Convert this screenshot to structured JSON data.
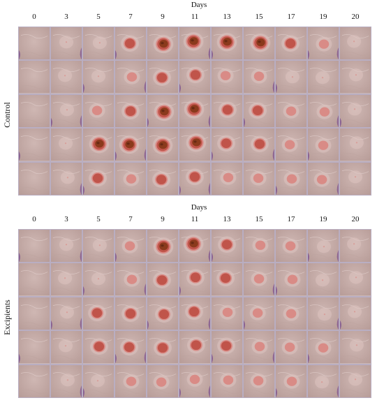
{
  "panels": [
    {
      "id": "control",
      "group_label": "Control",
      "axis_title": "Days",
      "days": [
        "0",
        "3",
        "5",
        "7",
        "9",
        "11",
        "13",
        "15",
        "17",
        "19",
        "20"
      ],
      "rows": 5,
      "wound_levels": [
        [
          0,
          1,
          1,
          3,
          4,
          4,
          4,
          4,
          3,
          2,
          1
        ],
        [
          0,
          1,
          1,
          2,
          3,
          3,
          2,
          2,
          1,
          1,
          1
        ],
        [
          0,
          1,
          2,
          3,
          4,
          4,
          3,
          3,
          2,
          2,
          1
        ],
        [
          0,
          1,
          4,
          4,
          4,
          4,
          3,
          3,
          2,
          2,
          1
        ],
        [
          0,
          1,
          3,
          2,
          3,
          3,
          2,
          2,
          2,
          2,
          1
        ]
      ]
    },
    {
      "id": "excipients",
      "group_label": "Excipients",
      "axis_title": "Days",
      "days": [
        "0",
        "3",
        "5",
        "7",
        "9",
        "11",
        "13",
        "15",
        "17",
        "19",
        "20"
      ],
      "rows": 5,
      "wound_levels": [
        [
          0,
          1,
          1,
          2,
          4,
          4,
          3,
          2,
          2,
          1,
          1
        ],
        [
          0,
          1,
          1,
          2,
          3,
          3,
          3,
          2,
          2,
          1,
          1
        ],
        [
          0,
          1,
          3,
          3,
          3,
          3,
          2,
          2,
          2,
          1,
          1
        ],
        [
          0,
          1,
          3,
          3,
          3,
          3,
          3,
          2,
          2,
          2,
          1
        ],
        [
          0,
          1,
          1,
          2,
          2,
          2,
          2,
          2,
          2,
          1,
          1
        ]
      ]
    }
  ],
  "colors": {
    "skin": "#cfb7b3",
    "skin_dark": "#b89d99",
    "purple_bg": "#7a4f8e",
    "scab": "#8a3a1c",
    "wound_red": "#c0544a",
    "wound_pink": "#d98b86",
    "grid_border": "#b9aec2"
  }
}
